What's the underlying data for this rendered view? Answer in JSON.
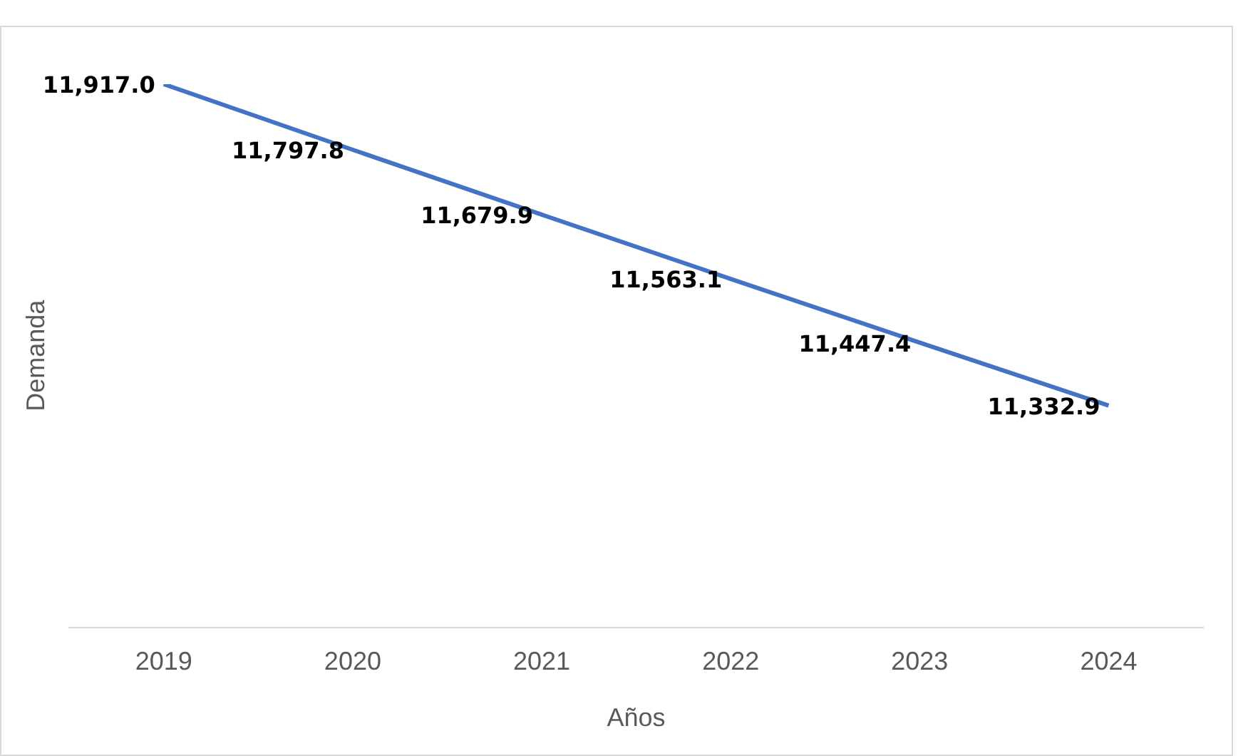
{
  "chart_data": {
    "type": "line",
    "xlabel": "Años",
    "ylabel": "Demanda",
    "categories": [
      "2019",
      "2020",
      "2021",
      "2022",
      "2023",
      "2024"
    ],
    "values": [
      11917.0,
      11797.8,
      11679.9,
      11563.1,
      11447.4,
      11332.9
    ],
    "value_labels": [
      "11,917.0",
      "11,797.8",
      "11,679.9",
      "11,563.1",
      "11,447.4",
      "11,332.9"
    ],
    "color": "#4472c4",
    "grid": false,
    "legend": false
  }
}
